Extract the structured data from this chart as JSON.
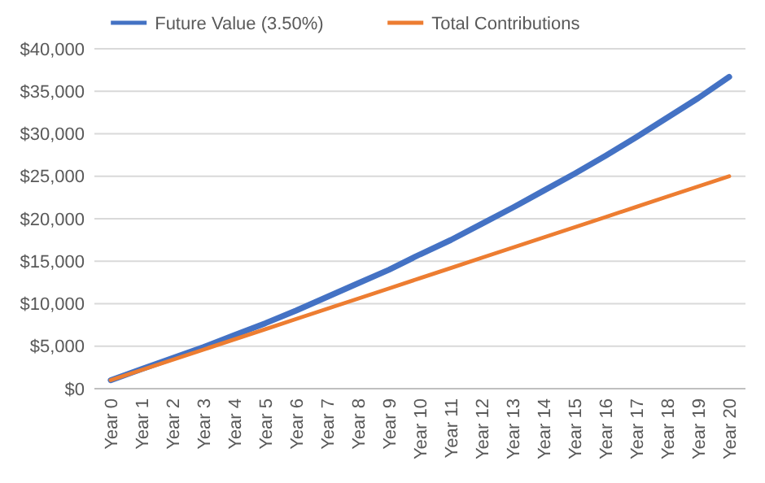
{
  "chart_data": {
    "type": "line",
    "categories": [
      "Year 0",
      "Year 1",
      "Year 2",
      "Year 3",
      "Year 4",
      "Year 5",
      "Year 6",
      "Year 7",
      "Year 8",
      "Year 9",
      "Year 10",
      "Year 11",
      "Year 12",
      "Year 13",
      "Year 14",
      "Year 15",
      "Year 16",
      "Year 17",
      "Year 18",
      "Year 19",
      "Year 20"
    ],
    "series": [
      {
        "name": "Future Value (3.50%)",
        "color": "#4472c4",
        "values": [
          1000,
          2300,
          3600,
          4900,
          6300,
          7700,
          9200,
          10800,
          12400,
          14000,
          15800,
          17500,
          19400,
          21300,
          23300,
          25300,
          27400,
          29600,
          31900,
          34200,
          36700
        ]
      },
      {
        "name": "Total Contributions",
        "color": "#ed7d31",
        "values": [
          1000,
          2200,
          3400,
          4600,
          5800,
          7000,
          8200,
          9400,
          10600,
          11800,
          13000,
          14200,
          15400,
          16600,
          17800,
          19000,
          20200,
          21400,
          22600,
          23800,
          25000
        ]
      }
    ],
    "ylim": [
      0,
      40000
    ],
    "yticks": [
      {
        "value": 0,
        "label": "$0"
      },
      {
        "value": 5000,
        "label": "$5,000"
      },
      {
        "value": 10000,
        "label": "$10,000"
      },
      {
        "value": 15000,
        "label": "$15,000"
      },
      {
        "value": 20000,
        "label": "$20,000"
      },
      {
        "value": 25000,
        "label": "$25,000"
      },
      {
        "value": 30000,
        "label": "$30,000"
      },
      {
        "value": 35000,
        "label": "$35,000"
      },
      {
        "value": 40000,
        "label": "$40,000"
      }
    ],
    "grid": "y",
    "legend": "top",
    "marker": "none",
    "line_style": "solid"
  }
}
